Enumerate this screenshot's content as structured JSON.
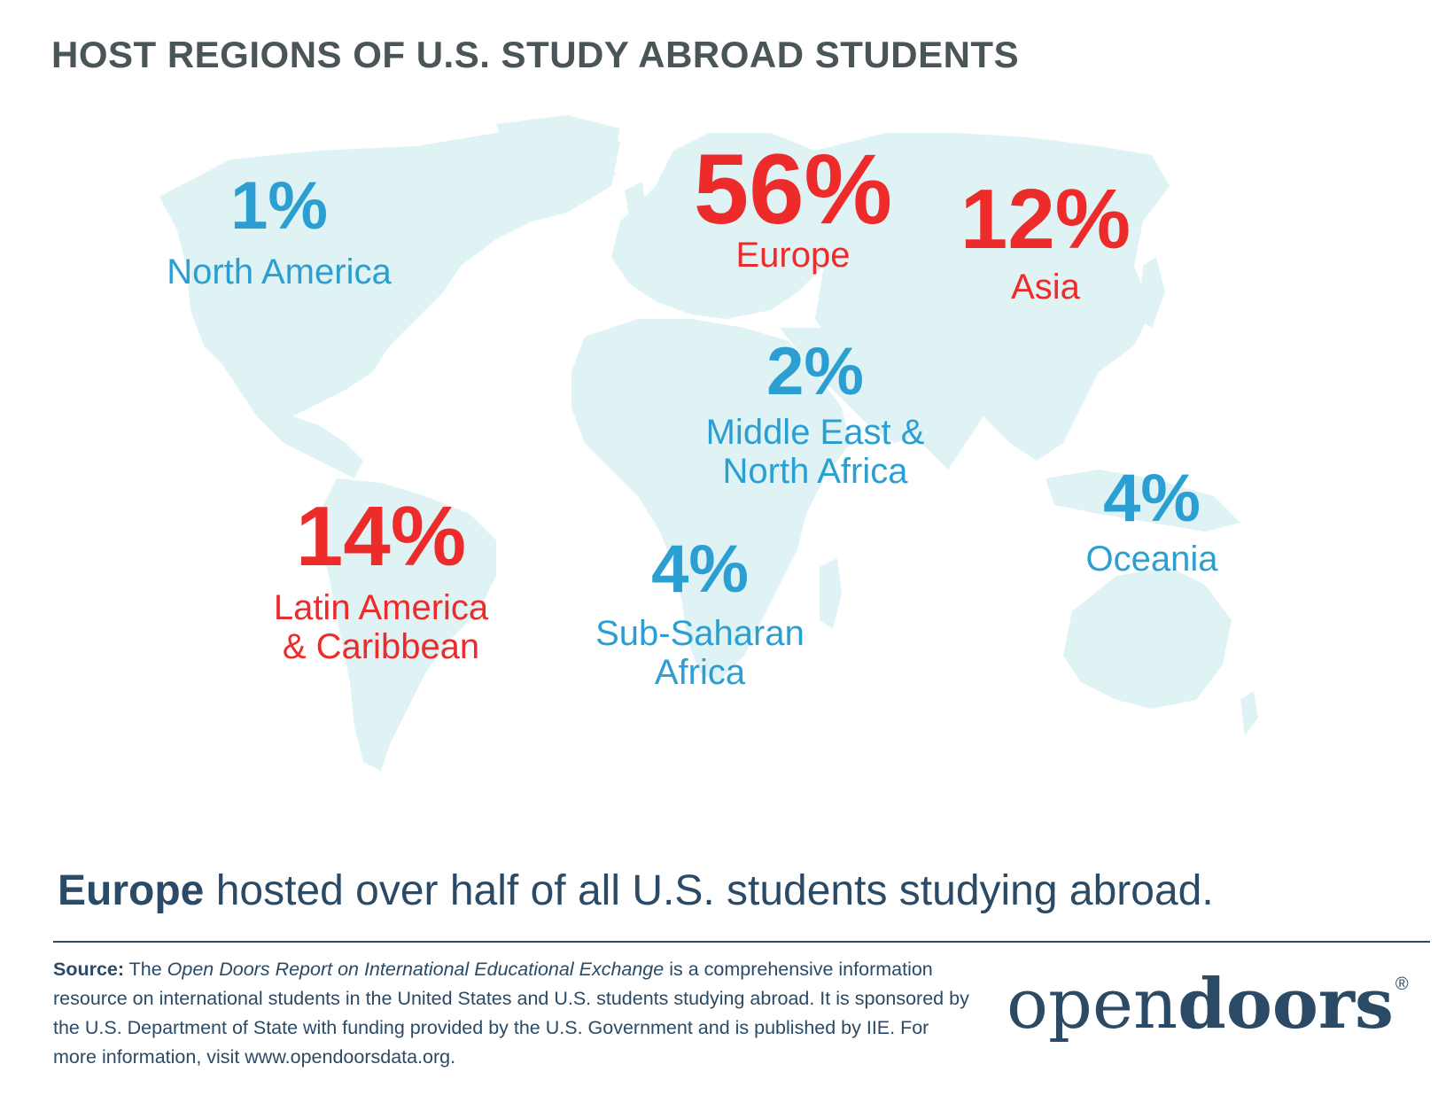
{
  "title": "HOST REGIONS OF U.S. STUDY ABROAD STUDENTS",
  "colors": {
    "title": "#4a5557",
    "highlight": "#ee2b2b",
    "standard": "#2b9fd1",
    "land": "#dff2f4",
    "text_dark": "#2a4a66"
  },
  "regions": {
    "north_america": {
      "pct": "1%",
      "label": "North America",
      "value": 1
    },
    "europe": {
      "pct": "56%",
      "label": "Europe",
      "value": 56
    },
    "asia": {
      "pct": "12%",
      "label": "Asia",
      "value": 12
    },
    "mena": {
      "pct": "2%",
      "label_1": "Middle East &",
      "label_2": "North Africa",
      "value": 2
    },
    "latin_america": {
      "pct": "14%",
      "label_1": "Latin America",
      "label_2": "& Caribbean",
      "value": 14
    },
    "sub_saharan": {
      "pct": "4%",
      "label_1": "Sub-Saharan",
      "label_2": "Africa",
      "value": 4
    },
    "oceania": {
      "pct": "4%",
      "label": "Oceania",
      "value": 4
    }
  },
  "summary": {
    "bold": "Europe",
    "rest": " hosted over half of all U.S. students studying abroad."
  },
  "source": {
    "lead": "Source:",
    "pre": " The ",
    "report": "Open Doors Report on International Educational Exchange",
    "text": " is a comprehensive information resource on international students in the United States and U.S. students studying abroad. It is sponsored by the U.S. Department of State with funding provided by the U.S. Government and is published by IIE. For more information, visit www.opendoorsdata.org."
  },
  "logo": {
    "part1": "open",
    "part2": "doors",
    "mark": "®"
  }
}
